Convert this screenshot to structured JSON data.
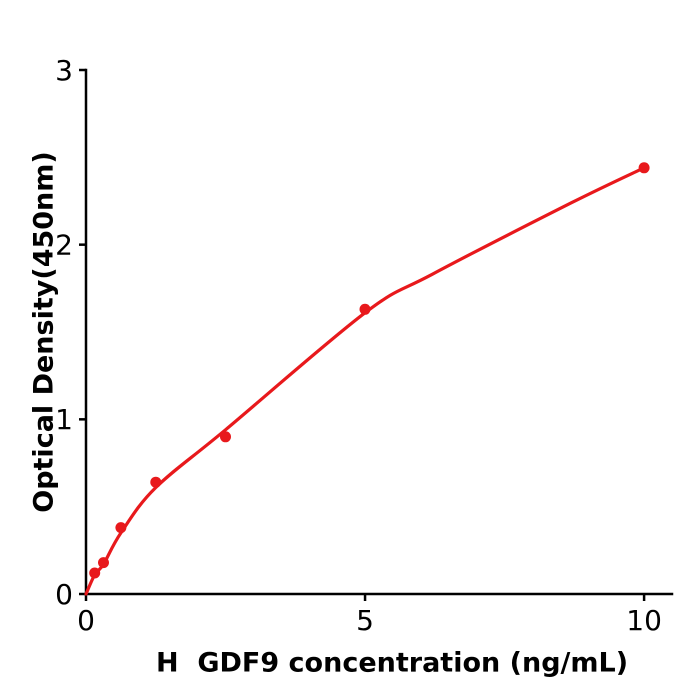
{
  "figure": {
    "background": "#ffffff"
  },
  "chart_data": {
    "type": "scatter",
    "title": "",
    "xlabel": "H  GDF9 concentration (ng/mL)",
    "ylabel": "Optical Density(450nm)",
    "points": {
      "x": [
        0.156,
        0.313,
        0.625,
        1.25,
        2.5,
        5,
        10
      ],
      "y": [
        0.12,
        0.18,
        0.38,
        0.64,
        0.9,
        1.63,
        2.44
      ]
    },
    "fit_curve": [
      [
        0,
        0.0
      ],
      [
        0.156,
        0.11
      ],
      [
        0.313,
        0.17
      ],
      [
        0.625,
        0.35
      ],
      [
        1.25,
        0.61
      ],
      [
        2.5,
        0.94
      ],
      [
        5,
        1.61
      ],
      [
        6.2,
        1.83
      ],
      [
        8.7,
        2.24
      ],
      [
        10,
        2.44
      ]
    ],
    "xlim": [
      0,
      10.5
    ],
    "ylim": [
      0,
      3
    ],
    "xticks": [
      0,
      5,
      10
    ],
    "xtick_labels": [
      "0",
      "5",
      "10"
    ],
    "yticks": [
      0,
      1,
      2,
      3
    ],
    "ytick_labels": [
      "0",
      "1",
      "2",
      "3"
    ],
    "grid": false,
    "legend_position": "none",
    "colors": {
      "curve": "#e8191c",
      "marker": "#e8191c",
      "axis": "#000000",
      "text": "#000000"
    }
  }
}
